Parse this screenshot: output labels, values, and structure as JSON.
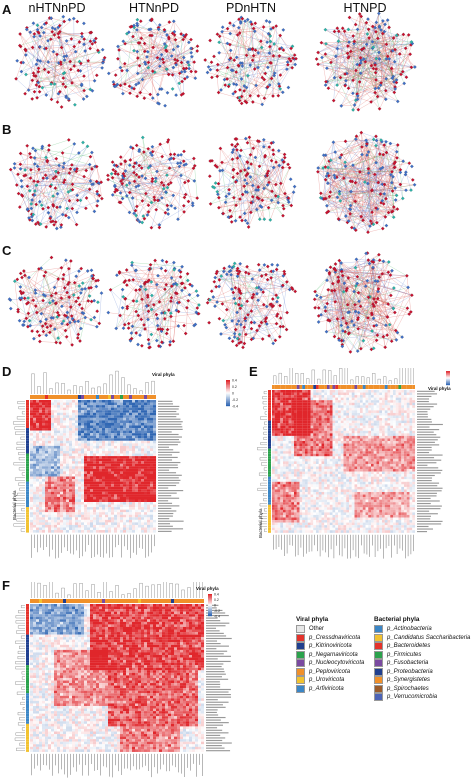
{
  "panels": {
    "a": "A",
    "b": "B",
    "c": "C",
    "d": "D",
    "e": "E",
    "f": "F"
  },
  "network_titles": [
    "nHTNnPD",
    "HTNnPD",
    "PDnHTN",
    "HTNPD"
  ],
  "heatmap_d": {
    "col_annotation_label": "Viral phyla",
    "row_annotation_label": "Bacterial phyla",
    "colorbar_ticks": [
      "0.4",
      "0.2",
      "0",
      "-0.2",
      "-0.4"
    ]
  },
  "heatmap_e": {
    "col_annotation_label": "Viral phyla",
    "row_annotation_label": "Bacterial phyla"
  },
  "heatmap_f": {
    "col_annotation_label": "Viral phyla",
    "colorbar_ticks": [
      "0.4",
      "0.2",
      "0",
      "-0.2",
      "-0.4"
    ]
  },
  "legend_viral": {
    "title": "Viral phyla",
    "items": [
      {
        "label": "Other",
        "color": "#e6e6e6"
      },
      {
        "label": "p_Cressdnaviricota",
        "color": "#e4322b"
      },
      {
        "label": "p_Kitrinoviricota",
        "color": "#1f3f8f"
      },
      {
        "label": "p_Negarnaviricota",
        "color": "#2ba24c"
      },
      {
        "label": "p_Nucleocytoviricota",
        "color": "#7a4aa0"
      },
      {
        "label": "p_Peploviricota",
        "color": "#f0902a"
      },
      {
        "label": "p_Uroviricota",
        "color": "#f2c230"
      },
      {
        "label": "p_Arfiviricota",
        "color": "#3b86c6"
      }
    ]
  },
  "legend_bacterial": {
    "title": "Bacterial phyla",
    "items": [
      {
        "label": "p_Actinobacteria",
        "color": "#3b86c6"
      },
      {
        "label": "p_Candidatus Saccharibacteria",
        "color": "#f2c230"
      },
      {
        "label": "p_Bacteroidetes",
        "color": "#e4322b"
      },
      {
        "label": "p_Firmicutes",
        "color": "#2ba24c"
      },
      {
        "label": "p_Fusobacteria",
        "color": "#7a4aa0"
      },
      {
        "label": "p_Proteobacteria",
        "color": "#1f3f8f"
      },
      {
        "label": "p_Synergistetes",
        "color": "#f0902a"
      },
      {
        "label": "p_Spirochaetes",
        "color": "#9b5b2a"
      },
      {
        "label": "p_Verrucomicrobia",
        "color": "#4c63b6"
      }
    ]
  },
  "colors": {
    "node_red": "#c8102e",
    "node_blue": "#3f6fc6",
    "node_teal": "#2bb3a8",
    "edge_red": "#d9534f",
    "edge_blue": "#5b7fd0",
    "edge_green": "#4dbb6a",
    "heat_pos": "#e0262b",
    "heat_neg": "#2f66b3",
    "annot_orange": "#f0902a"
  }
}
